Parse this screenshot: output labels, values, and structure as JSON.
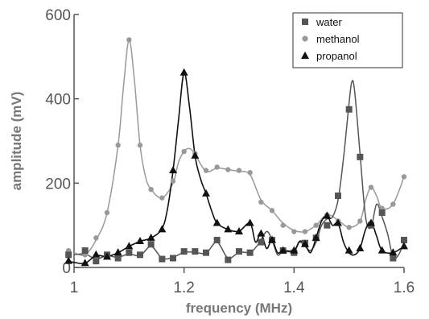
{
  "chart_data": {
    "type": "line",
    "xlabel": "frequency (MHz)",
    "ylabel": "amplitude (mV)",
    "xlim": [
      1.0,
      1.6
    ],
    "ylim": [
      0,
      600
    ],
    "xticks": [
      1,
      1.2,
      1.4,
      1.6
    ],
    "xtick_labels": [
      "1",
      "1.2",
      "1.4",
      "1.6"
    ],
    "yticks": [
      0,
      200,
      400,
      600
    ],
    "ytick_labels": [
      "0",
      "200",
      "400",
      "600"
    ],
    "grid": false,
    "legend_position": "top-right",
    "series": [
      {
        "name": "water",
        "marker": "square",
        "color": "#555555",
        "points": [
          [
            0.99,
            30
          ],
          [
            1.02,
            40
          ],
          [
            1.04,
            15
          ],
          [
            1.06,
            30
          ],
          [
            1.08,
            22
          ],
          [
            1.1,
            35
          ],
          [
            1.12,
            30
          ],
          [
            1.14,
            55
          ],
          [
            1.16,
            20
          ],
          [
            1.18,
            22
          ],
          [
            1.2,
            38
          ],
          [
            1.22,
            38
          ],
          [
            1.24,
            35
          ],
          [
            1.26,
            65
          ],
          [
            1.28,
            18
          ],
          [
            1.3,
            38
          ],
          [
            1.32,
            35
          ],
          [
            1.34,
            60
          ],
          [
            1.36,
            65
          ],
          [
            1.38,
            40
          ],
          [
            1.4,
            35
          ],
          [
            1.42,
            58
          ],
          [
            1.44,
            70
          ],
          [
            1.46,
            100
          ],
          [
            1.48,
            170
          ],
          [
            1.5,
            375
          ],
          [
            1.52,
            262
          ],
          [
            1.54,
            100
          ],
          [
            1.56,
            130
          ],
          [
            1.58,
            22
          ],
          [
            1.6,
            65
          ]
        ],
        "curve": [
          [
            1.0,
            30
          ],
          [
            1.02,
            32
          ],
          [
            1.04,
            20
          ],
          [
            1.06,
            28
          ],
          [
            1.08,
            24
          ],
          [
            1.1,
            32
          ],
          [
            1.12,
            28
          ],
          [
            1.14,
            50
          ],
          [
            1.16,
            22
          ],
          [
            1.18,
            24
          ],
          [
            1.2,
            36
          ],
          [
            1.22,
            36
          ],
          [
            1.24,
            34
          ],
          [
            1.26,
            60
          ],
          [
            1.28,
            22
          ],
          [
            1.3,
            36
          ],
          [
            1.32,
            36
          ],
          [
            1.335,
            55
          ],
          [
            1.35,
            85
          ],
          [
            1.36,
            65
          ],
          [
            1.37,
            30
          ],
          [
            1.38,
            38
          ],
          [
            1.4,
            38
          ],
          [
            1.41,
            60
          ],
          [
            1.42,
            50
          ],
          [
            1.43,
            40
          ],
          [
            1.44,
            60
          ],
          [
            1.45,
            100
          ],
          [
            1.46,
            115
          ],
          [
            1.47,
            120
          ],
          [
            1.48,
            160
          ],
          [
            1.49,
            260
          ],
          [
            1.5,
            390
          ],
          [
            1.505,
            440
          ],
          [
            1.51,
            420
          ],
          [
            1.52,
            270
          ],
          [
            1.53,
            120
          ],
          [
            1.54,
            95
          ],
          [
            1.55,
            150
          ],
          [
            1.56,
            120
          ],
          [
            1.57,
            80
          ],
          [
            1.58,
            25
          ],
          [
            1.59,
            30
          ],
          [
            1.6,
            60
          ]
        ]
      },
      {
        "name": "methanol",
        "marker": "circle",
        "color": "#999999",
        "points": [
          [
            0.99,
            40
          ],
          [
            1.02,
            30
          ],
          [
            1.04,
            70
          ],
          [
            1.06,
            130
          ],
          [
            1.08,
            290
          ],
          [
            1.1,
            540
          ],
          [
            1.12,
            290
          ],
          [
            1.14,
            185
          ],
          [
            1.16,
            165
          ],
          [
            1.18,
            205
          ],
          [
            1.2,
            275
          ],
          [
            1.22,
            270
          ],
          [
            1.24,
            230
          ],
          [
            1.26,
            238
          ],
          [
            1.28,
            232
          ],
          [
            1.3,
            230
          ],
          [
            1.32,
            225
          ],
          [
            1.34,
            155
          ],
          [
            1.36,
            135
          ],
          [
            1.38,
            100
          ],
          [
            1.4,
            85
          ],
          [
            1.42,
            85
          ],
          [
            1.44,
            100
          ],
          [
            1.46,
            125
          ],
          [
            1.48,
            110
          ],
          [
            1.5,
            95
          ],
          [
            1.52,
            110
          ],
          [
            1.54,
            190
          ],
          [
            1.56,
            140
          ],
          [
            1.58,
            150
          ],
          [
            1.6,
            215
          ]
        ],
        "curve": [
          [
            1.0,
            35
          ],
          [
            1.02,
            30
          ],
          [
            1.04,
            65
          ],
          [
            1.06,
            130
          ],
          [
            1.08,
            290
          ],
          [
            1.09,
            430
          ],
          [
            1.1,
            540
          ],
          [
            1.11,
            440
          ],
          [
            1.12,
            290
          ],
          [
            1.13,
            215
          ],
          [
            1.14,
            185
          ],
          [
            1.16,
            165
          ],
          [
            1.18,
            200
          ],
          [
            1.19,
            250
          ],
          [
            1.2,
            275
          ],
          [
            1.21,
            282
          ],
          [
            1.22,
            268
          ],
          [
            1.24,
            228
          ],
          [
            1.26,
            236
          ],
          [
            1.28,
            232
          ],
          [
            1.3,
            228
          ],
          [
            1.32,
            220
          ],
          [
            1.34,
            160
          ],
          [
            1.36,
            135
          ],
          [
            1.38,
            105
          ],
          [
            1.4,
            88
          ],
          [
            1.42,
            85
          ],
          [
            1.44,
            100
          ],
          [
            1.46,
            125
          ],
          [
            1.48,
            112
          ],
          [
            1.5,
            95
          ],
          [
            1.52,
            110
          ],
          [
            1.53,
            160
          ],
          [
            1.54,
            190
          ],
          [
            1.55,
            170
          ],
          [
            1.56,
            140
          ],
          [
            1.58,
            150
          ],
          [
            1.6,
            215
          ]
        ]
      },
      {
        "name": "propanol",
        "marker": "triangle",
        "color": "#111111",
        "points": [
          [
            0.99,
            15
          ],
          [
            1.02,
            10
          ],
          [
            1.04,
            30
          ],
          [
            1.06,
            25
          ],
          [
            1.08,
            35
          ],
          [
            1.1,
            50
          ],
          [
            1.12,
            62
          ],
          [
            1.14,
            70
          ],
          [
            1.16,
            90
          ],
          [
            1.18,
            230
          ],
          [
            1.2,
            462
          ],
          [
            1.22,
            265
          ],
          [
            1.24,
            175
          ],
          [
            1.26,
            105
          ],
          [
            1.28,
            90
          ],
          [
            1.3,
            85
          ],
          [
            1.32,
            105
          ],
          [
            1.34,
            80
          ],
          [
            1.36,
            65
          ],
          [
            1.38,
            40
          ],
          [
            1.4,
            40
          ],
          [
            1.42,
            55
          ],
          [
            1.44,
            70
          ],
          [
            1.46,
            122
          ],
          [
            1.48,
            105
          ],
          [
            1.5,
            40
          ],
          [
            1.52,
            45
          ],
          [
            1.54,
            105
          ],
          [
            1.56,
            40
          ],
          [
            1.58,
            35
          ],
          [
            1.6,
            50
          ]
        ],
        "curve": [
          [
            0.99,
            15
          ],
          [
            1.0,
            12
          ],
          [
            1.02,
            10
          ],
          [
            1.04,
            28
          ],
          [
            1.06,
            26
          ],
          [
            1.08,
            35
          ],
          [
            1.1,
            50
          ],
          [
            1.12,
            62
          ],
          [
            1.14,
            70
          ],
          [
            1.16,
            92
          ],
          [
            1.17,
            140
          ],
          [
            1.18,
            230
          ],
          [
            1.19,
            350
          ],
          [
            1.2,
            462
          ],
          [
            1.21,
            380
          ],
          [
            1.22,
            265
          ],
          [
            1.23,
            210
          ],
          [
            1.24,
            175
          ],
          [
            1.25,
            135
          ],
          [
            1.26,
            105
          ],
          [
            1.28,
            90
          ],
          [
            1.3,
            86
          ],
          [
            1.32,
            105
          ],
          [
            1.33,
            60
          ],
          [
            1.34,
            82
          ],
          [
            1.35,
            45
          ],
          [
            1.36,
            65
          ],
          [
            1.37,
            35
          ],
          [
            1.38,
            40
          ],
          [
            1.4,
            40
          ],
          [
            1.41,
            62
          ],
          [
            1.42,
            55
          ],
          [
            1.43,
            35
          ],
          [
            1.44,
            70
          ],
          [
            1.45,
            110
          ],
          [
            1.46,
            122
          ],
          [
            1.47,
            100
          ],
          [
            1.48,
            105
          ],
          [
            1.49,
            60
          ],
          [
            1.5,
            35
          ],
          [
            1.51,
            30
          ],
          [
            1.52,
            45
          ],
          [
            1.53,
            90
          ],
          [
            1.54,
            108
          ],
          [
            1.55,
            75
          ],
          [
            1.56,
            40
          ],
          [
            1.58,
            35
          ],
          [
            1.6,
            50
          ]
        ]
      }
    ]
  }
}
